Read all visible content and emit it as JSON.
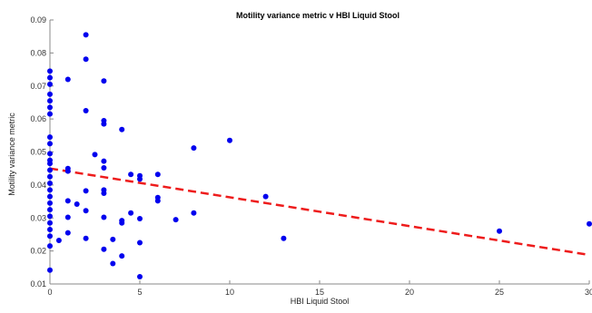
{
  "chart_data": {
    "type": "scatter",
    "title": "Motility variance metric v HBI Liquid Stool",
    "xlabel": "HBI Liquid Stool",
    "ylabel": "Motility variance metric",
    "xlim": [
      0,
      30
    ],
    "ylim": [
      0.01,
      0.09
    ],
    "xticks": [
      0,
      5,
      10,
      15,
      20,
      25,
      30
    ],
    "yticks": [
      0.01,
      0.02,
      0.03,
      0.04,
      0.05,
      0.06,
      0.07,
      0.08,
      0.09
    ],
    "xtick_labels": [
      "0",
      "5",
      "10",
      "15",
      "20",
      "25",
      "30"
    ],
    "ytick_labels": [
      "0.01",
      "0.02",
      "0.03",
      "0.04",
      "0.05",
      "0.06",
      "0.07",
      "0.08",
      "0.09"
    ],
    "grid": false,
    "legend": "none",
    "colors": {
      "points": "#0000ee",
      "trend": "#ee1c1c",
      "axis": "#888888"
    },
    "points": [
      {
        "x": 0,
        "y": 0.0745
      },
      {
        "x": 0,
        "y": 0.0725
      },
      {
        "x": 0,
        "y": 0.0705
      },
      {
        "x": 0,
        "y": 0.0675
      },
      {
        "x": 0,
        "y": 0.0655
      },
      {
        "x": 0,
        "y": 0.0635
      },
      {
        "x": 0,
        "y": 0.0615
      },
      {
        "x": 0,
        "y": 0.0545
      },
      {
        "x": 0,
        "y": 0.0525
      },
      {
        "x": 0,
        "y": 0.0495
      },
      {
        "x": 0,
        "y": 0.0475
      },
      {
        "x": 0,
        "y": 0.0465
      },
      {
        "x": 0,
        "y": 0.0445
      },
      {
        "x": 0,
        "y": 0.0425
      },
      {
        "x": 0,
        "y": 0.0405
      },
      {
        "x": 0,
        "y": 0.0385
      },
      {
        "x": 0,
        "y": 0.0365
      },
      {
        "x": 0,
        "y": 0.0345
      },
      {
        "x": 0,
        "y": 0.0325
      },
      {
        "x": 0,
        "y": 0.0305
      },
      {
        "x": 0,
        "y": 0.0285
      },
      {
        "x": 0,
        "y": 0.0265
      },
      {
        "x": 0,
        "y": 0.0245
      },
      {
        "x": 0,
        "y": 0.0215
      },
      {
        "x": 0,
        "y": 0.0142
      },
      {
        "x": 0.5,
        "y": 0.0232
      },
      {
        "x": 1,
        "y": 0.072
      },
      {
        "x": 1,
        "y": 0.045
      },
      {
        "x": 1,
        "y": 0.0442
      },
      {
        "x": 1,
        "y": 0.0352
      },
      {
        "x": 1,
        "y": 0.0302
      },
      {
        "x": 1,
        "y": 0.0255
      },
      {
        "x": 1.5,
        "y": 0.0342
      },
      {
        "x": 2,
        "y": 0.0855
      },
      {
        "x": 2,
        "y": 0.0781
      },
      {
        "x": 2,
        "y": 0.0625
      },
      {
        "x": 2,
        "y": 0.0382
      },
      {
        "x": 2,
        "y": 0.0322
      },
      {
        "x": 2,
        "y": 0.0238
      },
      {
        "x": 2.5,
        "y": 0.0492
      },
      {
        "x": 3,
        "y": 0.0715
      },
      {
        "x": 3,
        "y": 0.0595
      },
      {
        "x": 3,
        "y": 0.0585
      },
      {
        "x": 3,
        "y": 0.0472
      },
      {
        "x": 3,
        "y": 0.0452
      },
      {
        "x": 3,
        "y": 0.0385
      },
      {
        "x": 3,
        "y": 0.0375
      },
      {
        "x": 3,
        "y": 0.0302
      },
      {
        "x": 3,
        "y": 0.0205
      },
      {
        "x": 3.5,
        "y": 0.0235
      },
      {
        "x": 3.5,
        "y": 0.0162
      },
      {
        "x": 4,
        "y": 0.0568
      },
      {
        "x": 4,
        "y": 0.0292
      },
      {
        "x": 4,
        "y": 0.0285
      },
      {
        "x": 4,
        "y": 0.0185
      },
      {
        "x": 4.5,
        "y": 0.0432
      },
      {
        "x": 4.5,
        "y": 0.0315
      },
      {
        "x": 5,
        "y": 0.0428
      },
      {
        "x": 5,
        "y": 0.0418
      },
      {
        "x": 5,
        "y": 0.0298
      },
      {
        "x": 5,
        "y": 0.0225
      },
      {
        "x": 5,
        "y": 0.0122
      },
      {
        "x": 6,
        "y": 0.0432
      },
      {
        "x": 6,
        "y": 0.0362
      },
      {
        "x": 6,
        "y": 0.0352
      },
      {
        "x": 7,
        "y": 0.0295
      },
      {
        "x": 8,
        "y": 0.0512
      },
      {
        "x": 8,
        "y": 0.0315
      },
      {
        "x": 10,
        "y": 0.0535
      },
      {
        "x": 12,
        "y": 0.0365
      },
      {
        "x": 13,
        "y": 0.0238
      },
      {
        "x": 25,
        "y": 0.026
      },
      {
        "x": 30,
        "y": 0.0282
      }
    ],
    "trendline": {
      "style": "dashed",
      "x": [
        0,
        30
      ],
      "y": [
        0.045,
        0.0188
      ]
    }
  }
}
